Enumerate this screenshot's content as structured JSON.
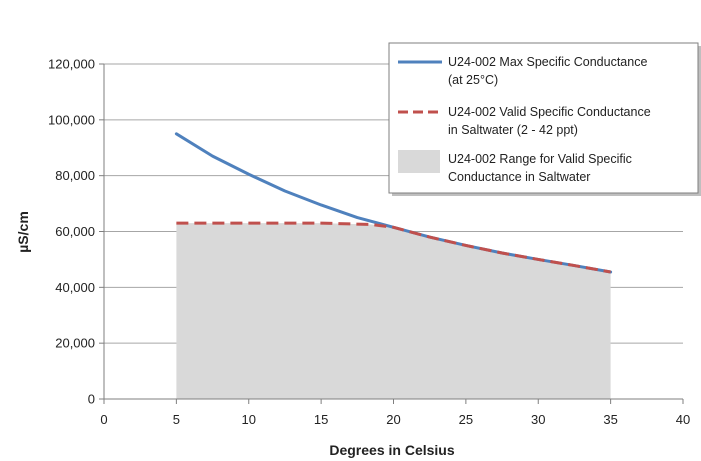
{
  "chart_data": {
    "type": "line",
    "title": "",
    "xlabel": "Degrees in Celsius",
    "ylabel": "µS/cm",
    "xlim": [
      0,
      40
    ],
    "ylim": [
      0,
      120000
    ],
    "x_ticks": [
      0,
      5,
      10,
      15,
      20,
      25,
      30,
      35,
      40
    ],
    "y_ticks": [
      0,
      20000,
      40000,
      60000,
      80000,
      100000,
      120000
    ],
    "x_tick_labels": [
      "0",
      "5",
      "10",
      "15",
      "20",
      "25",
      "30",
      "35",
      "40"
    ],
    "y_tick_labels": [
      "0",
      "20,000",
      "40,000",
      "60,000",
      "80,000",
      "100,000",
      "120,000"
    ],
    "grid": "horizontal",
    "legend_position": "top-right",
    "series": [
      {
        "name": "U24-002 Max Specific Conductance (at 25°C)",
        "legend_lines": [
          "U24-002 Max Specific Conductance",
          "(at 25°C)"
        ],
        "kind": "line",
        "color": "#4f81bd",
        "x": [
          5,
          7.5,
          10,
          12.5,
          15,
          17.5,
          20,
          22.5,
          25,
          27.5,
          30,
          32.5,
          35
        ],
        "y": [
          95000,
          87000,
          80500,
          74500,
          69500,
          65000,
          61500,
          58000,
          55000,
          52300,
          50000,
          47800,
          45500
        ]
      },
      {
        "name": "U24-002 Valid Specific Conductance in Saltwater (2 - 42 ppt)",
        "legend_lines": [
          "U24-002 Valid Specific Conductance",
          "in Saltwater (2 - 42 ppt)"
        ],
        "kind": "dashed-line",
        "color": "#c0504d",
        "x": [
          5,
          10,
          15,
          18.5,
          20,
          22.5,
          25,
          27.5,
          30,
          32.5,
          35
        ],
        "y": [
          63000,
          63000,
          63000,
          62500,
          61500,
          58000,
          55000,
          52300,
          50000,
          47800,
          45500
        ]
      },
      {
        "name": "U24-002 Range for Valid Specific Conductance in Saltwater",
        "legend_lines": [
          "U24-002 Range for Valid Specific",
          "Conductance in Saltwater"
        ],
        "kind": "area",
        "color": "#d9d9d9",
        "x": [
          5,
          10,
          15,
          18.5,
          20,
          22.5,
          25,
          27.5,
          30,
          32.5,
          35
        ],
        "y": [
          63000,
          63000,
          63000,
          62500,
          61500,
          58000,
          55000,
          52300,
          50000,
          47800,
          45500
        ]
      }
    ]
  }
}
